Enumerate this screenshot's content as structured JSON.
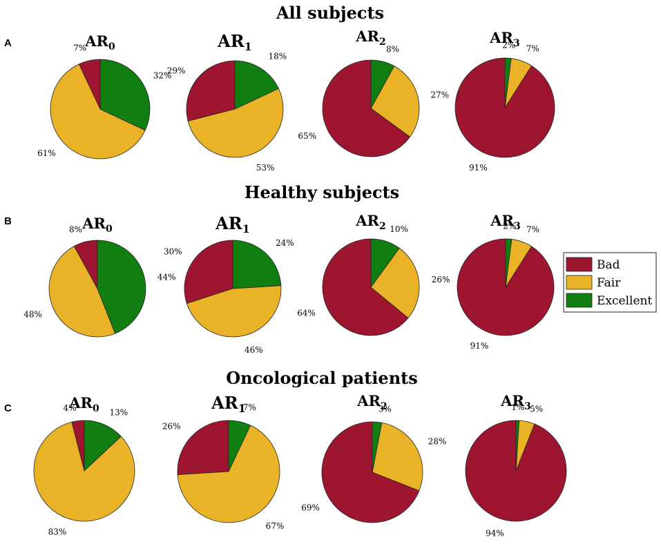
{
  "chart_data": [
    {
      "type": "pie",
      "panel": "A",
      "title": "All subjects",
      "categories": [
        "Bad",
        "Fair",
        "Excellent"
      ],
      "charts": [
        {
          "name": "AR",
          "subscript": "0",
          "values": [
            7,
            61,
            32
          ],
          "labels": [
            "7%",
            "61%",
            "32%"
          ]
        },
        {
          "name": "AR",
          "subscript": "1",
          "values": [
            29,
            53,
            18
          ],
          "labels": [
            "29%",
            "53%",
            "18%"
          ]
        },
        {
          "name": "AR",
          "subscript": "2",
          "values": [
            65,
            27,
            8
          ],
          "labels": [
            "65%",
            "27%",
            "8%"
          ]
        },
        {
          "name": "AR",
          "subscript": "3",
          "values": [
            91,
            7,
            2
          ],
          "labels": [
            "91%",
            "7%",
            "2%"
          ]
        }
      ]
    },
    {
      "type": "pie",
      "panel": "B",
      "title": "Healthy subjects",
      "categories": [
        "Bad",
        "Fair",
        "Excellent"
      ],
      "charts": [
        {
          "name": "AR",
          "subscript": "0",
          "values": [
            8,
            48,
            44
          ],
          "labels": [
            "8%",
            "48%",
            "44%"
          ]
        },
        {
          "name": "AR",
          "subscript": "1",
          "values": [
            30,
            46,
            24
          ],
          "labels": [
            "30%",
            "46%",
            "24%"
          ]
        },
        {
          "name": "AR",
          "subscript": "2",
          "values": [
            64,
            26,
            10
          ],
          "labels": [
            "64%",
            "26%",
            "10%"
          ]
        },
        {
          "name": "AR",
          "subscript": "3",
          "values": [
            91,
            7,
            2
          ],
          "labels": [
            "91%",
            "7%",
            "2%"
          ]
        }
      ]
    },
    {
      "type": "pie",
      "panel": "C",
      "title": "Oncological patients",
      "categories": [
        "Bad",
        "Fair",
        "Excellent"
      ],
      "charts": [
        {
          "name": "AR",
          "subscript": "0",
          "values": [
            4,
            83,
            13
          ],
          "labels": [
            "4%",
            "83%",
            "13%"
          ]
        },
        {
          "name": "AR",
          "subscript": "1",
          "values": [
            26,
            67,
            7
          ],
          "labels": [
            "26%",
            "67%",
            "7%"
          ]
        },
        {
          "name": "AR",
          "subscript": "2",
          "values": [
            69,
            28,
            3
          ],
          "labels": [
            "69%",
            "28%",
            "3%"
          ]
        },
        {
          "name": "AR",
          "subscript": "3",
          "values": [
            94,
            5,
            1
          ],
          "labels": [
            "94%",
            "5%",
            "1%"
          ]
        }
      ]
    }
  ],
  "legend": {
    "items": [
      {
        "label": "Bad",
        "color": "#9e1530"
      },
      {
        "label": "Fair",
        "color": "#eab327"
      },
      {
        "label": "Excellent",
        "color": "#117e11"
      }
    ]
  }
}
